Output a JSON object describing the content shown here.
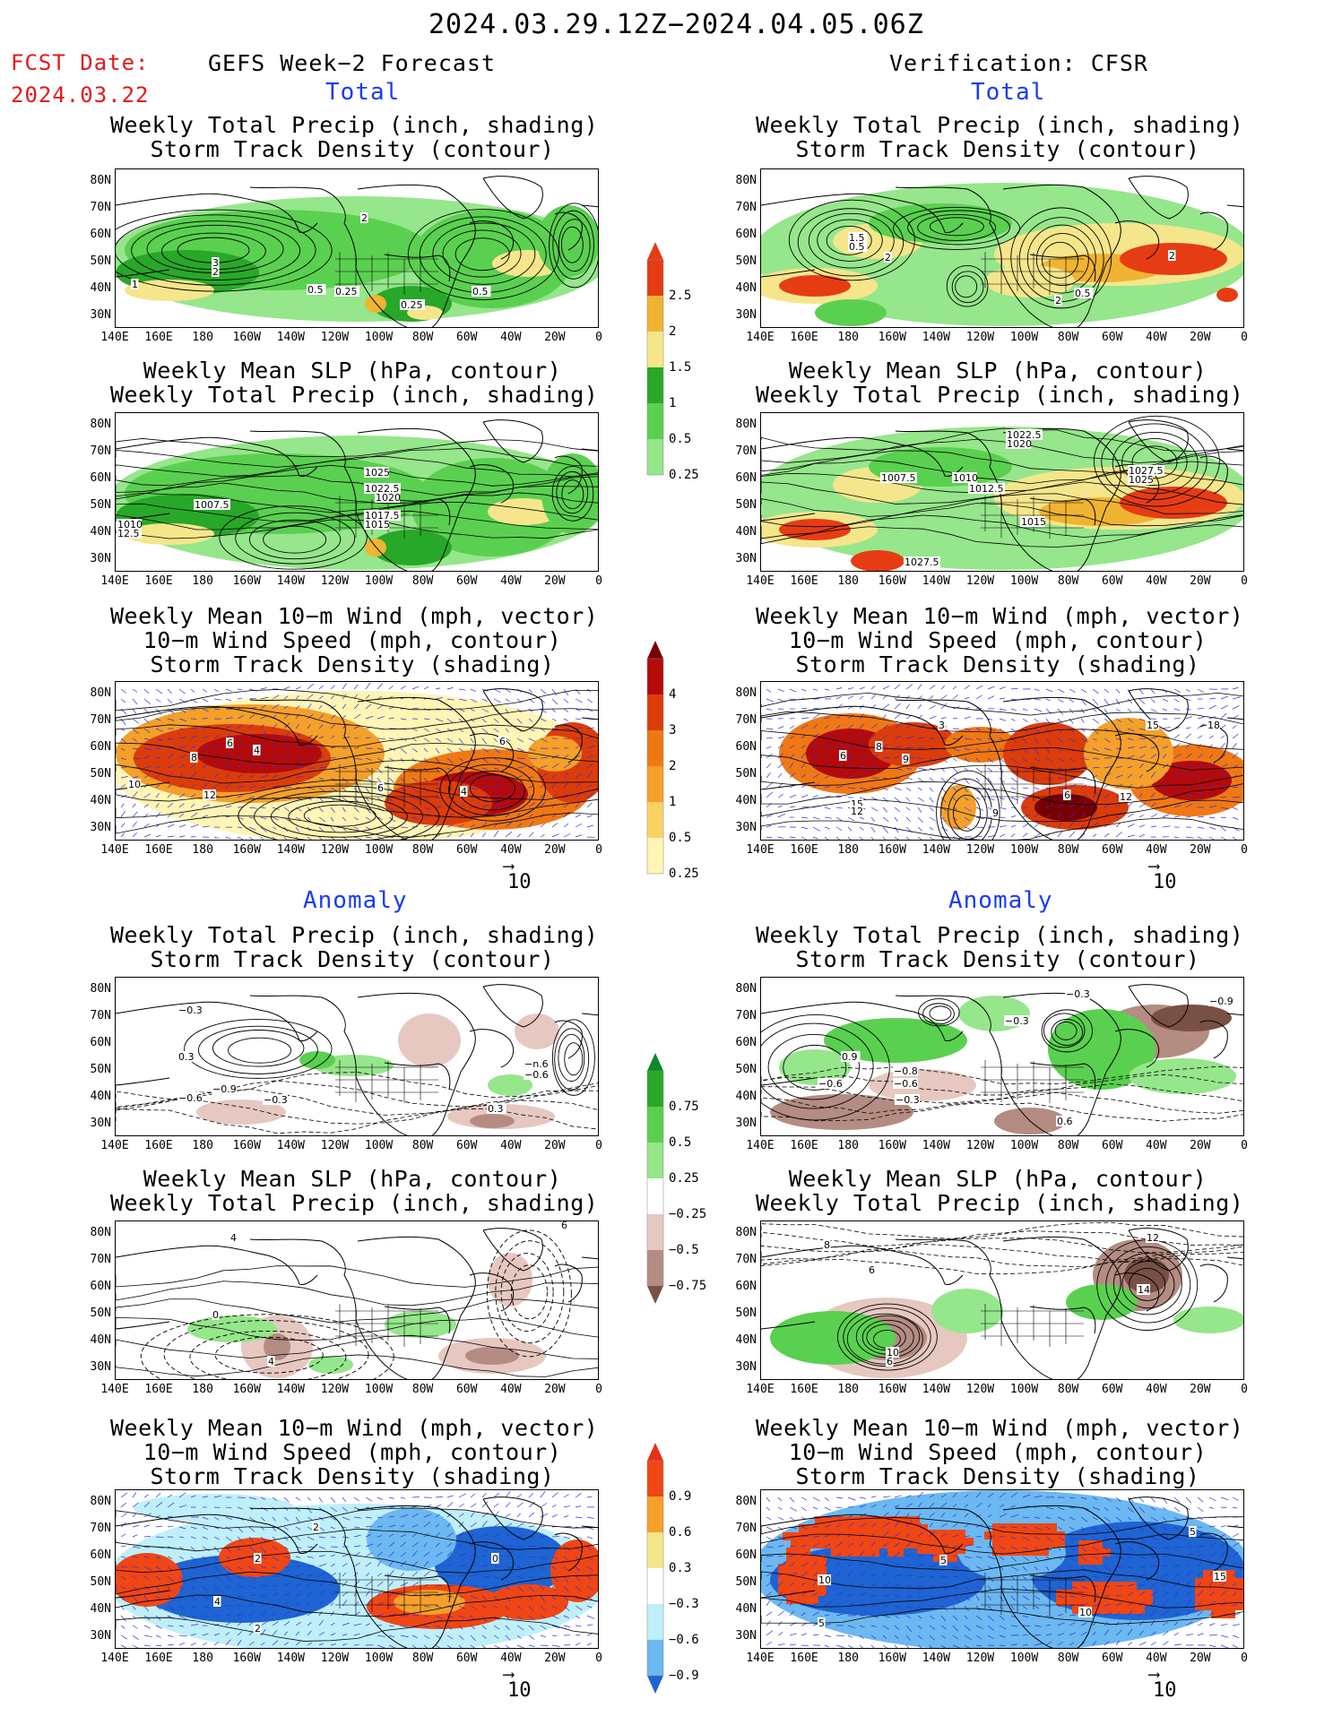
{
  "header": {
    "date_range": "2024.03.29.12Z−2024.04.05.06Z",
    "fcst_label": "FCST Date:",
    "fcst_date": "2024.03.22",
    "left_title": "GEFS Week−2 Forecast",
    "right_title": "Verification: CFSR"
  },
  "sections": {
    "total": "Total",
    "anomaly": "Anomaly"
  },
  "titles": {
    "precip_track": [
      "Weekly Total Precip (inch, shading)",
      "Storm Track Density (contour)"
    ],
    "slp_precip": [
      "Weekly Mean SLP (hPa, contour)",
      "Weekly Total Precip (inch, shading)"
    ],
    "wind_track": [
      "Weekly Mean 10−m Wind (mph, vector)",
      "10−m Wind Speed (mph, contour)",
      "Storm Track Density (shading)"
    ]
  },
  "axes": {
    "lat_labels": [
      "80N",
      "70N",
      "60N",
      "50N",
      "40N",
      "30N"
    ],
    "lon_labels": [
      "140E",
      "160E",
      "180",
      "160W",
      "140W",
      "120W",
      "100W",
      "80W",
      "60W",
      "40W",
      "20W",
      "0"
    ]
  },
  "colorbars": {
    "precip_total": [
      "2.5",
      "2",
      "1.5",
      "1",
      "0.5",
      "0.25"
    ],
    "track_total": [
      "4",
      "3",
      "2",
      "1",
      "0.5",
      "0.25"
    ],
    "precip_anom": [
      "0.75",
      "0.5",
      "0.25",
      "−0.25",
      "−0.5",
      "−0.75"
    ],
    "track_anom": [
      "0.9",
      "0.6",
      "0.3",
      "−0.3",
      "−0.6",
      "−0.9"
    ]
  },
  "colors": {
    "green_scale": [
      "#c8f5c0",
      "#96e68c",
      "#5ad050",
      "#28a828",
      "#f5e68c",
      "#f0b432",
      "#e63c14"
    ],
    "heat_scale": [
      "#fff5b4",
      "#fad264",
      "#f5a028",
      "#f07814",
      "#dc3c0a",
      "#b40a0a",
      "#780000"
    ],
    "brown_scale": [
      "#e6c8c0",
      "#b48c82",
      "#785046"
    ],
    "blue_scale": [
      "#bfeff8",
      "#6cb8f0",
      "#1e64d2"
    ],
    "red_scale": [
      "#f5e68c",
      "#f5a028",
      "#f04614"
    ]
  },
  "vector_scale": "10",
  "contour_labels": {
    "pt_f": [
      "3",
      "2",
      "1",
      "0.5",
      "0.25",
      "0.5",
      "2",
      "0.25"
    ],
    "pt_v": [
      "1.5",
      "0.5",
      "2",
      "2",
      "0.5",
      "2"
    ],
    "slp_f": [
      "1007.5",
      "1025",
      "1022.5",
      "1020",
      "1017.5",
      "1015",
      "1010",
      "12.5"
    ],
    "slp_v": [
      "1007.5",
      "1010",
      "1012.5",
      "1022.5",
      "1020",
      "1027.5",
      "1025",
      "1015",
      "1027.5"
    ],
    "w_f": [
      "8",
      "4",
      "6",
      "10",
      "12",
      "6",
      "4",
      "6"
    ],
    "w_v": [
      "6",
      "8",
      "9",
      "3",
      "15",
      "12",
      "9",
      "6",
      "12",
      "15",
      "18"
    ],
    "pa_f": [
      "−0.3",
      "0.3",
      "−0.6",
      "−0.9",
      "−0.3",
      "−n.6",
      "−0.6",
      "0.3"
    ],
    "pa_v": [
      "−0.3",
      "−0.9",
      "0.9",
      "−0.6",
      "−0.6",
      "−0.3",
      "−0.8",
      "−0.3",
      "0.6"
    ],
    "sa_f": [
      "4",
      "0",
      "6",
      "4"
    ],
    "sa_v": [
      "8",
      "6",
      "12",
      "14",
      "10",
      "6"
    ],
    "wa_f": [
      "2",
      "2",
      "4",
      "0",
      "2"
    ],
    "wa_v": [
      "10",
      "5",
      "5",
      "10",
      "5",
      "15"
    ]
  }
}
